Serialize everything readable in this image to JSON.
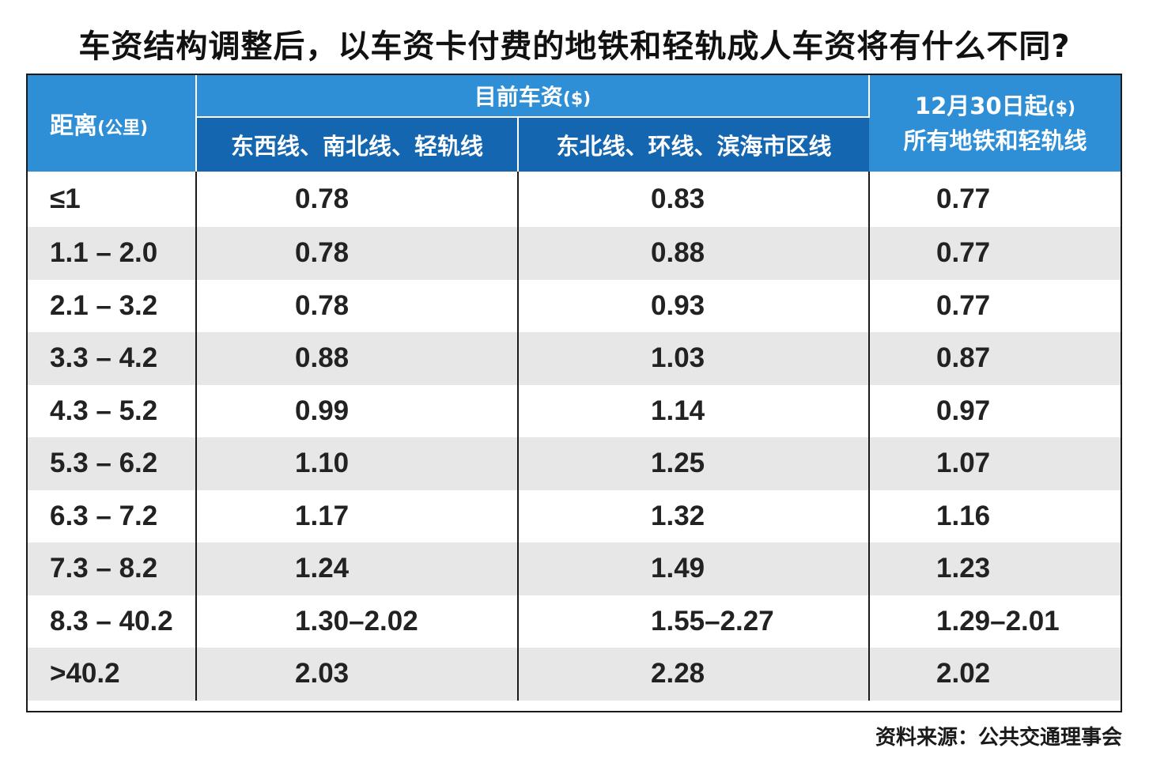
{
  "title": "车资结构调整后，以车资卡付费的地铁和轻轨成人车资将有什么不同?",
  "table": {
    "headers": {
      "distance": "距离",
      "distance_unit": "(公里)",
      "current_group": "目前车资",
      "current_group_unit": "($)",
      "col1": "东西线、南北线、轻轨线",
      "col2": "东北线、环线、滨海市区线",
      "new_line1": "12月30日起",
      "new_line1_unit": "($)",
      "new_line2": "所有地铁和轻轨线"
    },
    "rows": [
      {
        "distance": "≤1",
        "col1": "0.78",
        "col2": "0.83",
        "col3": "0.77"
      },
      {
        "distance": "1.1 – 2.0",
        "col1": "0.78",
        "col2": "0.88",
        "col3": "0.77"
      },
      {
        "distance": "2.1 – 3.2",
        "col1": "0.78",
        "col2": "0.93",
        "col3": "0.77"
      },
      {
        "distance": "3.3 – 4.2",
        "col1": "0.88",
        "col2": "1.03",
        "col3": "0.87"
      },
      {
        "distance": "4.3 – 5.2",
        "col1": "0.99",
        "col2": "1.14",
        "col3": "0.97"
      },
      {
        "distance": "5.3 – 6.2",
        "col1": "1.10",
        "col2": "1.25",
        "col3": "1.07"
      },
      {
        "distance": "6.3 – 7.2",
        "col1": "1.17",
        "col2": "1.32",
        "col3": "1.16"
      },
      {
        "distance": "7.3 – 8.2",
        "col1": "1.24",
        "col2": "1.49",
        "col3": "1.23"
      },
      {
        "distance": "8.3 – 40.2",
        "col1": "1.30–2.02",
        "col2": "1.55–2.27",
        "col3": "1.29–2.01"
      },
      {
        "distance": ">40.2",
        "col1": "2.03",
        "col2": "2.28",
        "col3": "2.02"
      }
    ]
  },
  "source": "资料来源：公共交通理事会",
  "colors": {
    "header_light": "#2f8fd6",
    "header_dark": "#1566b0",
    "row_alt": "#e7e7e8"
  }
}
